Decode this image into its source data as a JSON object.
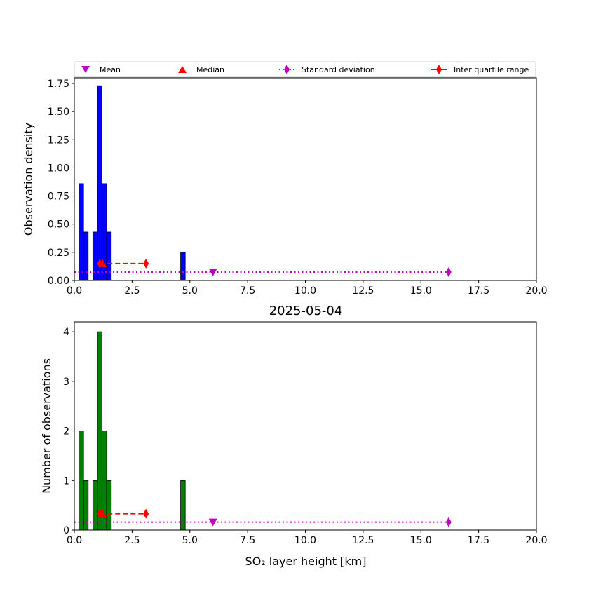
{
  "legend": {
    "placement": "top",
    "entries": [
      {
        "label": "Mean",
        "marker": "triangle-down",
        "color": "#bf00bf"
      },
      {
        "label": "Median",
        "marker": "triangle-up",
        "color": "#ff0000"
      },
      {
        "label": "Standard deviation",
        "marker": "diamond",
        "line": "dotted",
        "color": "#bf00bf"
      },
      {
        "label": "Inter quartile range",
        "marker": "diamond",
        "line": "solid",
        "color": "#ff0000"
      }
    ]
  },
  "chart_data": [
    {
      "type": "bar",
      "title": "",
      "xlabel": "",
      "ylabel": "Observation density",
      "xlim": [
        0,
        20
      ],
      "ylim": [
        0,
        1.8
      ],
      "xticks": [
        "0.0",
        "2.5",
        "5.0",
        "7.5",
        "10.0",
        "12.5",
        "15.0",
        "17.5",
        "20.0"
      ],
      "yticks": [
        "0.00",
        "0.25",
        "0.50",
        "0.75",
        "1.00",
        "1.25",
        "1.50",
        "1.75"
      ],
      "ytick_values": [
        0,
        0.25,
        0.5,
        0.75,
        1.0,
        1.25,
        1.5,
        1.75
      ],
      "bar_color": "#0000ff",
      "bins": [
        {
          "x0": 0.2,
          "x1": 0.4,
          "value": 0.86
        },
        {
          "x0": 0.4,
          "x1": 0.6,
          "value": 0.43
        },
        {
          "x0": 0.8,
          "x1": 1.0,
          "value": 0.43
        },
        {
          "x0": 1.0,
          "x1": 1.2,
          "value": 1.73
        },
        {
          "x0": 1.2,
          "x1": 1.4,
          "value": 0.86
        },
        {
          "x0": 1.4,
          "x1": 1.6,
          "value": 0.43
        },
        {
          "x0": 4.6,
          "x1": 4.8,
          "value": 0.25
        }
      ],
      "stats": {
        "mean": {
          "x": 6.0,
          "y": 0.075
        },
        "median": {
          "x": 1.1,
          "y": 0.15
        },
        "std_range": {
          "x0": 0.0,
          "x1": 16.2,
          "y": 0.075
        },
        "iqr_range": {
          "x0": 1.1,
          "x1": 3.1,
          "y": 0.15
        }
      }
    },
    {
      "type": "bar",
      "title": "2025-05-04",
      "xlabel": "SO₂ layer height [km]",
      "ylabel": "Number of observations",
      "xlim": [
        0,
        20
      ],
      "ylim": [
        0,
        4.2
      ],
      "xticks": [
        "0.0",
        "2.5",
        "5.0",
        "7.5",
        "10.0",
        "12.5",
        "15.0",
        "17.5",
        "20.0"
      ],
      "yticks": [
        "0",
        "1",
        "2",
        "3",
        "4"
      ],
      "ytick_values": [
        0,
        1,
        2,
        3,
        4
      ],
      "bar_color": "#008000",
      "bins": [
        {
          "x0": 0.2,
          "x1": 0.4,
          "value": 2
        },
        {
          "x0": 0.4,
          "x1": 0.6,
          "value": 1
        },
        {
          "x0": 0.8,
          "x1": 1.0,
          "value": 1
        },
        {
          "x0": 1.0,
          "x1": 1.2,
          "value": 4
        },
        {
          "x0": 1.2,
          "x1": 1.4,
          "value": 2
        },
        {
          "x0": 1.4,
          "x1": 1.6,
          "value": 1
        },
        {
          "x0": 4.6,
          "x1": 4.8,
          "value": 1
        }
      ],
      "stats": {
        "mean": {
          "x": 6.0,
          "y": 0.16
        },
        "median": {
          "x": 1.1,
          "y": 0.33
        },
        "std_range": {
          "x0": 0.0,
          "x1": 16.2,
          "y": 0.16
        },
        "iqr_range": {
          "x0": 1.1,
          "x1": 3.1,
          "y": 0.33
        }
      }
    }
  ]
}
